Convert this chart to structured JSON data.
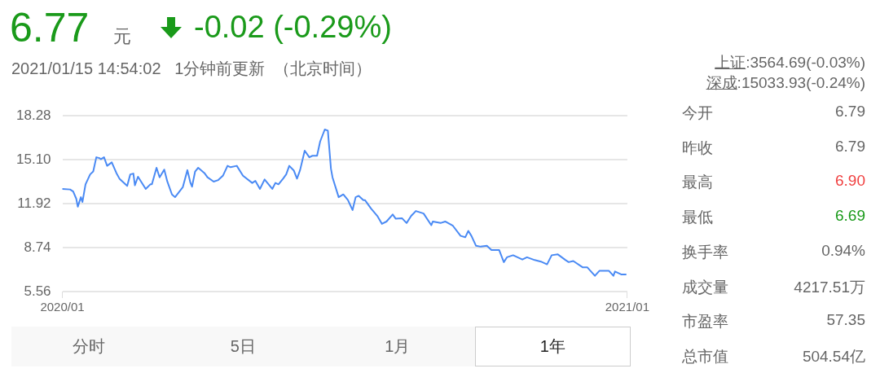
{
  "chart_data": {
    "type": "line",
    "annotations": [
      "6.77",
      "元",
      "-0.02 (-0.29%)",
      "2021/01/15 14:54:02   1分钟前更新  （北京时间）",
      "上证:3564.69(-0.03%)",
      "深成:15033.93(-0.24%)",
      "今开",
      "6.79",
      "昨收",
      "6.79",
      "最高",
      "6.90",
      "最低",
      "6.69",
      "换手率",
      "0.94%",
      "成交量",
      "4217.51万",
      "市盈率",
      "57.35",
      "总市值",
      "504.54亿",
      "分时",
      "5日",
      "1月",
      "1年"
    ],
    "x": [
      "2020-01-15",
      "2020-01-20",
      "2020-01-22",
      "2020-01-24",
      "2020-01-25",
      "2020-01-27",
      "2020-01-28",
      "2020-01-30",
      "2020-02-02",
      "2020-02-04",
      "2020-02-06",
      "2020-02-08",
      "2020-02-09",
      "2020-02-11",
      "2020-02-13",
      "2020-02-16",
      "2020-02-19",
      "2020-02-21",
      "2020-02-24",
      "2020-02-26",
      "2020-02-28",
      "2020-03-01",
      "2020-03-02",
      "2020-03-04",
      "2020-03-09",
      "2020-03-12",
      "2020-03-13",
      "2020-03-16",
      "2020-03-18",
      "2020-03-21",
      "2020-03-23",
      "2020-03-26",
      "2020-03-28",
      "2020-04-02",
      "2020-04-05",
      "2020-04-07",
      "2020-04-08",
      "2020-04-10",
      "2020-04-12",
      "2020-04-16",
      "2020-04-18",
      "2020-04-22",
      "2020-04-25",
      "2020-04-28",
      "2020-05-01",
      "2020-05-03",
      "2020-05-07",
      "2020-05-11",
      "2020-05-17",
      "2020-05-19",
      "2020-05-22",
      "2020-05-25",
      "2020-05-30",
      "2020-06-01",
      "2020-06-03",
      "2020-06-06",
      "2020-06-08",
      "2020-06-10",
      "2020-06-13",
      "2020-06-15",
      "2020-06-17",
      "2020-06-20",
      "2020-06-23",
      "2020-06-25",
      "2020-06-28",
      "2020-06-30",
      "2020-07-03",
      "2020-07-05",
      "2020-07-07",
      "2020-07-08",
      "2020-07-12",
      "2020-07-15",
      "2020-07-18",
      "2020-07-21",
      "2020-07-23",
      "2020-07-25",
      "2020-07-28",
      "2020-07-29",
      "2020-08-02",
      "2020-08-06",
      "2020-08-09",
      "2020-08-12",
      "2020-08-16",
      "2020-08-18",
      "2020-08-22",
      "2020-08-25",
      "2020-08-28",
      "2020-08-31",
      "2020-09-05",
      "2020-09-10",
      "2020-09-11",
      "2020-09-16",
      "2020-09-19",
      "2020-09-24",
      "2020-09-29",
      "2020-10-02",
      "2020-10-04",
      "2020-10-06",
      "2020-10-09",
      "2020-10-12",
      "2020-10-16",
      "2020-10-19",
      "2020-10-24",
      "2020-10-27",
      "2020-10-29",
      "2020-11-02",
      "2020-11-08",
      "2020-11-11",
      "2020-11-16",
      "2020-11-20",
      "2020-11-24",
      "2020-11-27",
      "2020-12-01",
      "2020-12-06",
      "2020-12-08",
      "2020-12-11",
      "2020-12-17",
      "2020-12-20",
      "2020-12-25",
      "2020-12-28",
      "2021-01-03",
      "2021-01-06",
      "2021-01-07",
      "2021-01-11",
      "2021-01-14"
    ],
    "series": [
      {
        "color": "#4a8af4",
        "values": [
          12.99,
          12.95,
          12.8,
          12.28,
          11.7,
          12.39,
          12.04,
          13.32,
          14.04,
          14.25,
          15.28,
          15.22,
          15.14,
          15.28,
          14.66,
          14.91,
          14.14,
          13.73,
          13.42,
          13.21,
          14.04,
          14.1,
          13.25,
          13.87,
          12.99,
          13.32,
          13.32,
          14.52,
          13.83,
          14.39,
          13.52,
          12.59,
          12.39,
          13.11,
          14.35,
          13.42,
          13.15,
          14.25,
          14.52,
          14.14,
          13.83,
          13.52,
          13.63,
          13.94,
          14.66,
          14.56,
          14.66,
          13.94,
          13.42,
          13.57,
          12.99,
          13.67,
          12.99,
          13.42,
          13.32,
          13.73,
          14.04,
          14.66,
          14.31,
          13.73,
          14.35,
          15.76,
          15.28,
          15.39,
          15.39,
          16.42,
          17.29,
          17.21,
          14.45,
          13.83,
          12.39,
          12.59,
          12.18,
          11.46,
          12.39,
          12.49,
          12.18,
          12.18,
          11.56,
          11.04,
          10.46,
          10.63,
          11.14,
          10.83,
          10.87,
          10.52,
          11.04,
          11.39,
          11.21,
          10.36,
          10.63,
          10.52,
          10.63,
          10.32,
          9.59,
          9.49,
          9.95,
          9.59,
          8.87,
          8.81,
          8.87,
          8.56,
          8.56,
          7.69,
          8.04,
          8.19,
          7.88,
          8.04,
          7.84,
          7.73,
          7.53,
          8.19,
          8.25,
          7.84,
          7.69,
          7.77,
          7.32,
          7.32,
          6.7,
          7.07,
          7.07,
          6.7,
          7.01,
          6.8,
          6.8
        ]
      }
    ],
    "xlim": [
      "2020-01-15",
      "2021-01-15"
    ],
    "xticks": [
      {
        "value": "2020-01-15",
        "label": "2020/01"
      },
      {
        "value": "2021-01-15",
        "label": "2021/01"
      }
    ],
    "ylim": [
      5.56,
      18.28
    ],
    "yticks": [
      {
        "value": 5.56,
        "label": "5.56"
      },
      {
        "value": 8.74,
        "label": "8.74"
      },
      {
        "value": 11.92,
        "label": "11.92"
      },
      {
        "value": 15.1,
        "label": "15.10"
      },
      {
        "value": 18.28,
        "label": "18.28"
      }
    ],
    "grid": "y",
    "legend": false,
    "marker": "none",
    "line_style": "solid"
  }
}
